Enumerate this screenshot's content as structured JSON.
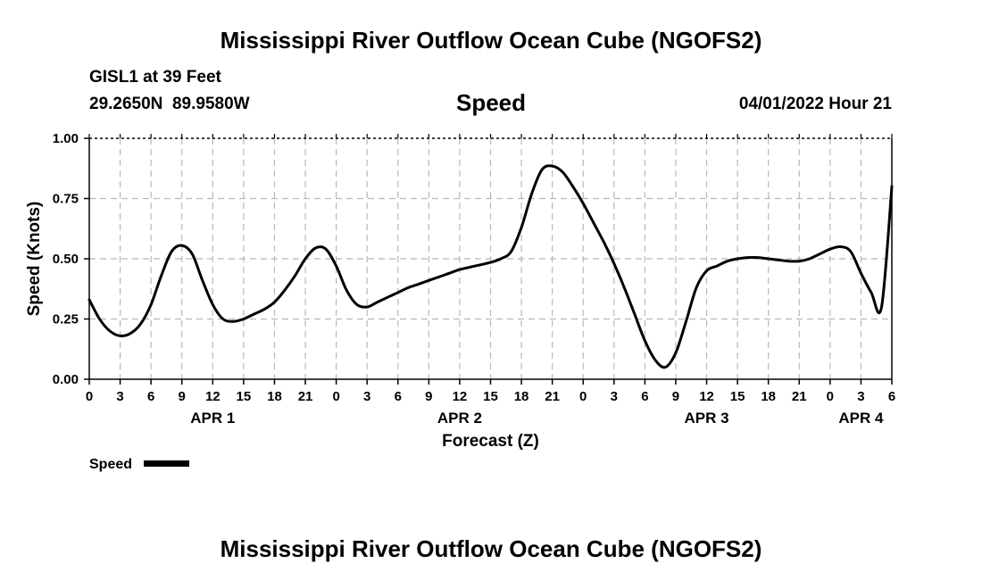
{
  "header": {
    "title": "Mississippi River Outflow Ocean Cube (NGOFS2)",
    "station": "GISL1 at 39 Feet",
    "coords": "29.2650N  89.9580W",
    "panel_title": "Speed",
    "run": "04/01/2022 Hour 21"
  },
  "footer": {
    "title": "Mississippi River Outflow Ocean Cube (NGOFS2)"
  },
  "chart_data": {
    "type": "line",
    "title": "Speed",
    "xlabel": "Forecast (Z)",
    "ylabel": "Speed (Knots)",
    "xlim": [
      0,
      78
    ],
    "ylim": [
      0,
      1
    ],
    "grid": true,
    "x_unit": "hours since 00Z Apr 1",
    "y_ticks": [
      0.0,
      0.25,
      0.5,
      0.75,
      1.0
    ],
    "y_tick_labels": [
      "0.00",
      "0.25",
      "0.50",
      "0.75",
      "1.00"
    ],
    "x_tick_labels": [
      "0",
      "3",
      "6",
      "9",
      "12",
      "15",
      "18",
      "21",
      "0",
      "3",
      "6",
      "9",
      "12",
      "15",
      "18",
      "21",
      "0",
      "3",
      "6",
      "9",
      "12",
      "15",
      "18",
      "21",
      "0",
      "3",
      "6"
    ],
    "day_labels": [
      {
        "hour": 12,
        "label": "APR 1"
      },
      {
        "hour": 36,
        "label": "APR 2"
      },
      {
        "hour": 60,
        "label": "APR 3"
      },
      {
        "hour": 75,
        "label": "APR 4"
      }
    ],
    "legend": {
      "label": "Speed",
      "position": "bottom-left"
    },
    "series": [
      {
        "name": "Speed",
        "color": "#000000",
        "x": [
          0,
          1,
          2,
          3,
          4,
          5,
          6,
          7,
          8,
          9,
          10,
          11,
          12,
          13,
          14,
          15,
          16,
          17,
          18,
          19,
          20,
          21,
          22,
          23,
          24,
          25,
          26,
          27,
          28,
          29,
          30,
          31,
          32,
          33,
          34,
          35,
          36,
          37,
          38,
          39,
          40,
          41,
          42,
          43,
          44,
          45,
          46,
          47,
          48,
          49,
          50,
          51,
          52,
          53,
          54,
          55,
          56,
          57,
          58,
          59,
          60,
          61,
          62,
          63,
          64,
          65,
          66,
          67,
          68,
          69,
          70,
          71,
          72,
          73,
          74,
          75,
          76,
          77,
          78
        ],
        "values": [
          0.33,
          0.25,
          0.2,
          0.18,
          0.19,
          0.23,
          0.31,
          0.43,
          0.53,
          0.555,
          0.52,
          0.41,
          0.31,
          0.25,
          0.24,
          0.25,
          0.27,
          0.29,
          0.32,
          0.37,
          0.43,
          0.5,
          0.545,
          0.54,
          0.47,
          0.37,
          0.31,
          0.3,
          0.32,
          0.34,
          0.36,
          0.38,
          0.395,
          0.41,
          0.425,
          0.44,
          0.455,
          0.465,
          0.475,
          0.485,
          0.5,
          0.53,
          0.63,
          0.77,
          0.87,
          0.885,
          0.86,
          0.8,
          0.73,
          0.65,
          0.57,
          0.48,
          0.38,
          0.27,
          0.16,
          0.08,
          0.05,
          0.11,
          0.24,
          0.38,
          0.45,
          0.47,
          0.49,
          0.5,
          0.505,
          0.505,
          0.5,
          0.495,
          0.49,
          0.49,
          0.5,
          0.52,
          0.54,
          0.55,
          0.53,
          0.44,
          0.36,
          0.3,
          0.8
        ]
      }
    ]
  }
}
